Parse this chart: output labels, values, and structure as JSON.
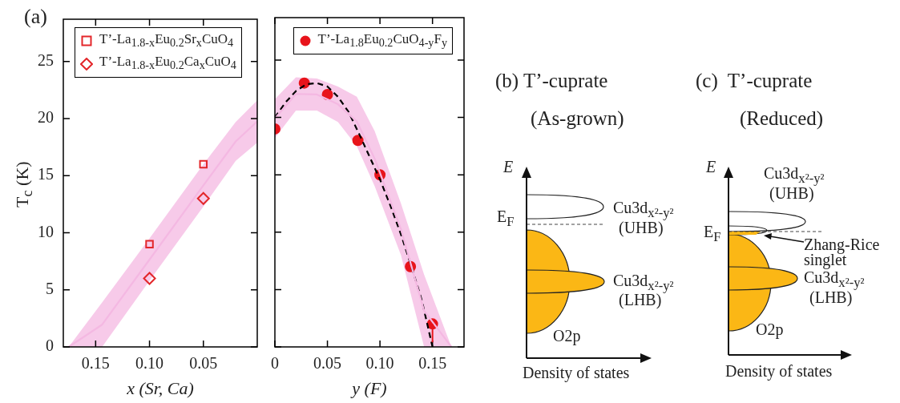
{
  "chart_data": [
    {
      "type": "scatter",
      "title": "(a)",
      "xlabel": "x (Sr, Ca)",
      "ylabel": "T$_{c}$ (K)",
      "xlim": [
        0.18,
        0
      ],
      "xticks": [
        {
          "value": 0.15,
          "label": "0.15"
        },
        {
          "value": 0.1,
          "label": "0.10"
        },
        {
          "value": 0.05,
          "label": "0.05"
        }
      ],
      "ylim": [
        0,
        28.7
      ],
      "yticks": [
        0,
        5,
        10,
        15,
        20,
        25
      ],
      "legend": "top left",
      "grid": false,
      "series": [
        {
          "type": "line",
          "color": "#f4b8e2",
          "marker": "none",
          "x": [
            0.175,
            0.144,
            0.1,
            0.05,
            0.02,
            0
          ],
          "values": [
            0,
            1.95,
            7.65,
            14.15,
            18,
            19.75
          ],
          "lower": [
            0,
            0,
            5.8,
            12.3,
            16.3,
            17.9
          ],
          "upper": [
            0,
            3.9,
            9.5,
            16,
            19.7,
            21.6
          ]
        },
        {
          "name": "T’-La$_{1.8-x}$Eu$_{0.2}$Sr$_{x}$CuO$_{4}$",
          "color": "#e3262a",
          "marker": "square",
          "x": [
            0.1,
            0.05
          ],
          "values": [
            9,
            16
          ]
        },
        {
          "name": "T’-La$_{1.8-x}$Eu$_{0.2}$Ca$_{x}$CuO$_{4}$",
          "color": "#e3262a",
          "marker": "diamond",
          "x": [
            0.1,
            0.05
          ],
          "values": [
            6,
            13
          ]
        }
      ]
    },
    {
      "type": "scatter",
      "xlabel": "y (F)",
      "xlim": [
        0,
        0.18
      ],
      "xticks": [
        0,
        {
          "value": 0.05,
          "label": "0.05"
        },
        {
          "value": 0.1,
          "label": "0.10"
        },
        {
          "value": 0.15,
          "label": "0.15"
        }
      ],
      "ylim": [
        0,
        28.7
      ],
      "yticks": [
        0,
        5,
        10,
        15,
        20,
        25
      ],
      "tick_labels": "x",
      "legend": "top right",
      "grid": false,
      "series": [
        {
          "type": "line",
          "color": "#f4b8e2",
          "marker": "none",
          "x": [
            0,
            0.02,
            0.04,
            0.06,
            0.078,
            0.095,
            0.12,
            0.142,
            0.168
          ],
          "values": [
            19.9,
            22.05,
            22,
            21.15,
            19.65,
            16.4,
            10.25,
            3.15,
            0
          ],
          "lower": [
            18.2,
            20.6,
            20.6,
            19.6,
            17.5,
            14,
            8,
            0,
            0
          ],
          "upper": [
            21.6,
            23.5,
            23.4,
            22.7,
            21.8,
            18.8,
            12.5,
            6.3,
            0
          ]
        },
        {
          "type": "line",
          "color": "#000000",
          "line_style": "dashed",
          "marker": "none",
          "x": [
            0,
            0.01,
            0.02,
            0.03,
            0.04,
            0.05,
            0.06,
            0.07,
            0.08,
            0.09,
            0.1,
            0.11,
            0.12,
            0.13,
            0.14,
            0.15
          ],
          "values": [
            20,
            21.3,
            22.3,
            22.9,
            23,
            22.7,
            21.8,
            20.5,
            18.6,
            16.6,
            14.6,
            12.3,
            9.8,
            7,
            4,
            0
          ]
        },
        {
          "name": "T’-La$_{1.8}$Eu$_{0.2}$CuO$_{4-y}$F$_{y}$",
          "color": "#e8141b",
          "marker": "circle",
          "x": [
            0,
            0.028,
            0.05,
            0.079,
            0.1,
            0.129,
            0.15
          ],
          "values": [
            19,
            23,
            22,
            18,
            15,
            7,
            2
          ],
          "errors": [
            null,
            null,
            null,
            null,
            null,
            null,
            [
              0.4,
              2
            ]
          ]
        }
      ]
    },
    {
      "type": "other",
      "title": "(b) T’-cuprate",
      "subtitle": "(As-grown)",
      "xlabel": "Density of states",
      "ylabel": "E",
      "annotations": [
        "E$_{F}$",
        "Cu3d$_{x²-y²}$",
        "(UHB)",
        "Cu3d$_{x²-y²}$",
        "(LHB)",
        "O2p"
      ]
    },
    {
      "type": "other",
      "title": "(c)  T’-cuprate",
      "subtitle": "(Reduced)",
      "xlabel": "Density of states",
      "ylabel": "E",
      "annotations": [
        "Cu3d$_{x²-y²}$",
        "(UHB)",
        "E$_{F}$",
        "Zhang-Rice singlet",
        "Cu3d$_{x²-y²}$",
        "(LHB)",
        "O2p"
      ]
    }
  ]
}
